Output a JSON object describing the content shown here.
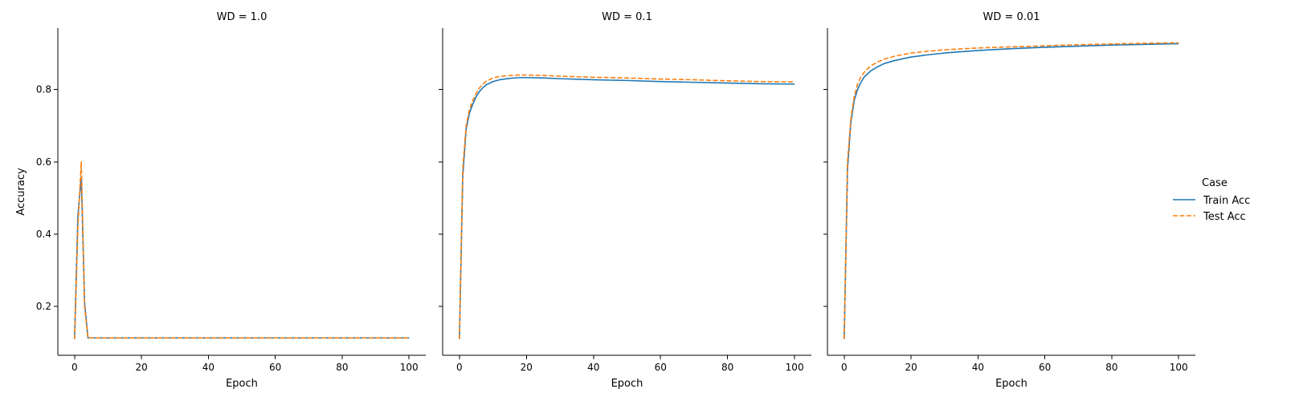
{
  "chart_data": [
    {
      "type": "line",
      "title": "WD = 1.0",
      "xlabel": "Epoch",
      "ylabel": "Accuracy",
      "xlim": [
        -5,
        105
      ],
      "ylim": [
        0.065,
        0.97
      ],
      "xticks": [
        0,
        20,
        40,
        60,
        80,
        100
      ],
      "yticks": [
        0.2,
        0.4,
        0.6,
        0.8
      ],
      "series": [
        {
          "name": "Train Acc",
          "color": "#1f77b4",
          "style": "solid",
          "x": [
            0,
            1,
            2,
            3,
            4,
            5,
            10,
            20,
            40,
            60,
            80,
            100
          ],
          "y": [
            0.11,
            0.45,
            0.56,
            0.21,
            0.113,
            0.113,
            0.113,
            0.113,
            0.113,
            0.113,
            0.113,
            0.113
          ]
        },
        {
          "name": "Test Acc",
          "color": "#ff7f0e",
          "style": "dashed",
          "x": [
            0,
            1,
            2,
            3,
            4,
            5,
            10,
            20,
            40,
            60,
            80,
            100
          ],
          "y": [
            0.11,
            0.42,
            0.6,
            0.2,
            0.113,
            0.113,
            0.113,
            0.113,
            0.113,
            0.113,
            0.113,
            0.113
          ]
        }
      ]
    },
    {
      "type": "line",
      "title": "WD = 0.1",
      "xlabel": "Epoch",
      "ylabel": "",
      "xlim": [
        -5,
        105
      ],
      "ylim": [
        0.065,
        0.97
      ],
      "xticks": [
        0,
        20,
        40,
        60,
        80,
        100
      ],
      "yticks": [
        0.2,
        0.4,
        0.6,
        0.8
      ],
      "series": [
        {
          "name": "Train Acc",
          "color": "#1f77b4",
          "style": "solid",
          "x": [
            0,
            1,
            2,
            3,
            4,
            5,
            6,
            7,
            8,
            10,
            12,
            15,
            18,
            20,
            25,
            30,
            40,
            50,
            60,
            70,
            80,
            90,
            100
          ],
          "y": [
            0.11,
            0.56,
            0.69,
            0.735,
            0.76,
            0.78,
            0.795,
            0.805,
            0.813,
            0.822,
            0.827,
            0.831,
            0.833,
            0.833,
            0.832,
            0.83,
            0.827,
            0.825,
            0.822,
            0.82,
            0.818,
            0.816,
            0.815
          ]
        },
        {
          "name": "Test Acc",
          "color": "#ff7f0e",
          "style": "dashed",
          "x": [
            0,
            1,
            2,
            3,
            4,
            5,
            6,
            7,
            8,
            10,
            12,
            15,
            18,
            20,
            25,
            30,
            40,
            50,
            60,
            70,
            80,
            90,
            100
          ],
          "y": [
            0.11,
            0.58,
            0.7,
            0.745,
            0.77,
            0.79,
            0.805,
            0.815,
            0.823,
            0.832,
            0.836,
            0.839,
            0.84,
            0.84,
            0.839,
            0.837,
            0.834,
            0.832,
            0.829,
            0.827,
            0.824,
            0.822,
            0.821
          ]
        }
      ]
    },
    {
      "type": "line",
      "title": "WD = 0.01",
      "xlabel": "Epoch",
      "ylabel": "",
      "xlim": [
        -5,
        105
      ],
      "ylim": [
        0.065,
        0.97
      ],
      "xticks": [
        0,
        20,
        40,
        60,
        80,
        100
      ],
      "yticks": [
        0.2,
        0.4,
        0.6,
        0.8
      ],
      "series": [
        {
          "name": "Train Acc",
          "color": "#1f77b4",
          "style": "solid",
          "x": [
            0,
            1,
            2,
            3,
            4,
            5,
            6,
            8,
            10,
            12,
            15,
            20,
            25,
            30,
            40,
            50,
            60,
            70,
            80,
            90,
            100
          ],
          "y": [
            0.11,
            0.58,
            0.71,
            0.77,
            0.8,
            0.82,
            0.835,
            0.852,
            0.863,
            0.872,
            0.88,
            0.89,
            0.896,
            0.901,
            0.908,
            0.913,
            0.917,
            0.92,
            0.923,
            0.925,
            0.927
          ]
        },
        {
          "name": "Test Acc",
          "color": "#ff7f0e",
          "style": "dashed",
          "x": [
            0,
            1,
            2,
            3,
            4,
            5,
            6,
            8,
            10,
            12,
            15,
            20,
            25,
            30,
            40,
            50,
            60,
            70,
            80,
            90,
            100
          ],
          "y": [
            0.11,
            0.6,
            0.72,
            0.78,
            0.815,
            0.835,
            0.848,
            0.866,
            0.876,
            0.884,
            0.892,
            0.901,
            0.906,
            0.91,
            0.915,
            0.918,
            0.921,
            0.924,
            0.926,
            0.928,
            0.929
          ]
        }
      ]
    }
  ],
  "legend": {
    "title": "Case",
    "placement": "right",
    "items": [
      {
        "label": "Train Acc",
        "color": "#1f77b4",
        "style": "solid"
      },
      {
        "label": "Test Acc",
        "color": "#ff7f0e",
        "style": "dashed"
      }
    ]
  }
}
